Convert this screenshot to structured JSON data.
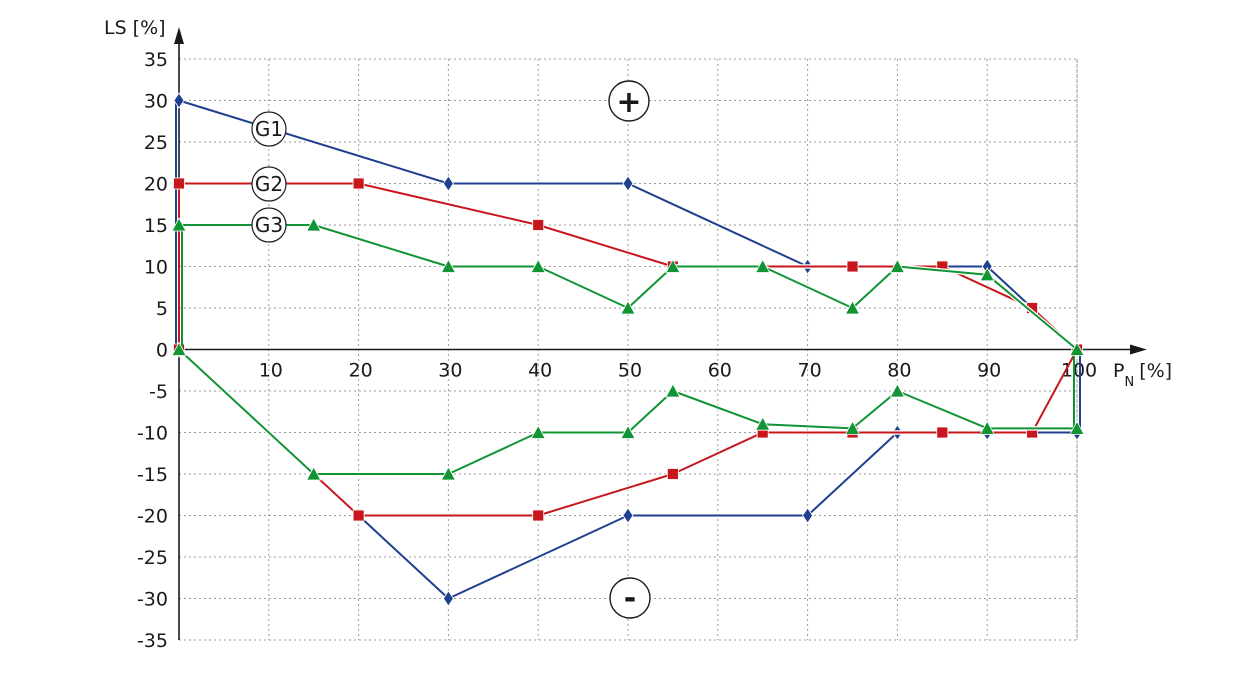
{
  "chart_data": {
    "type": "line",
    "ylabel": "LS [%]",
    "xlabel_main": "P",
    "xlabel_sub": "N",
    "xlabel_unit": "[%]",
    "xlim": [
      0,
      100
    ],
    "ylim": [
      -35,
      35
    ],
    "x_ticks": [
      10,
      20,
      30,
      40,
      50,
      60,
      70,
      80,
      90,
      100
    ],
    "y_ticks": [
      35,
      30,
      25,
      20,
      15,
      10,
      5,
      0,
      -5,
      -10,
      -15,
      -20,
      -25,
      -30,
      -35
    ],
    "grid": true,
    "region_labels": {
      "positive": "+",
      "negative": "-"
    },
    "series": [
      {
        "name": "G1",
        "color": "#1f3f8f",
        "marker": "diamond",
        "upper": [
          [
            0,
            30
          ],
          [
            30,
            20
          ],
          [
            50,
            20
          ],
          [
            70,
            10
          ],
          [
            90,
            10
          ],
          [
            100,
            0
          ]
        ],
        "lower": [
          [
            0,
            0
          ],
          [
            30,
            -30
          ],
          [
            50,
            -20
          ],
          [
            70,
            -20
          ],
          [
            80,
            -10
          ],
          [
            90,
            -10
          ],
          [
            100,
            -10
          ]
        ]
      },
      {
        "name": "G2",
        "color": "#c8161d",
        "marker": "square",
        "upper": [
          [
            0,
            20
          ],
          [
            20,
            20
          ],
          [
            40,
            15
          ],
          [
            55,
            10
          ],
          [
            75,
            10
          ],
          [
            85,
            10
          ],
          [
            95,
            5
          ],
          [
            100,
            0
          ]
        ],
        "lower": [
          [
            0,
            0
          ],
          [
            20,
            -20
          ],
          [
            40,
            -20
          ],
          [
            55,
            -15
          ],
          [
            65,
            -10
          ],
          [
            75,
            -10
          ],
          [
            85,
            -10
          ],
          [
            95,
            -10
          ]
        ]
      },
      {
        "name": "G3",
        "color": "#119433",
        "marker": "triangle",
        "upper": [
          [
            0,
            15
          ],
          [
            15,
            15
          ],
          [
            30,
            10
          ],
          [
            40,
            10
          ],
          [
            50,
            5
          ],
          [
            55,
            10
          ],
          [
            65,
            10
          ],
          [
            75,
            5
          ],
          [
            80,
            10
          ],
          [
            90,
            9
          ],
          [
            100,
            0
          ]
        ],
        "lower": [
          [
            0,
            0
          ],
          [
            15,
            -15
          ],
          [
            30,
            -15
          ],
          [
            40,
            -10
          ],
          [
            50,
            -10
          ],
          [
            55,
            -5
          ],
          [
            65,
            -9
          ],
          [
            75,
            -9.5
          ],
          [
            80,
            -5
          ],
          [
            90,
            -9.5
          ],
          [
            100,
            -9.5
          ]
        ]
      }
    ]
  }
}
